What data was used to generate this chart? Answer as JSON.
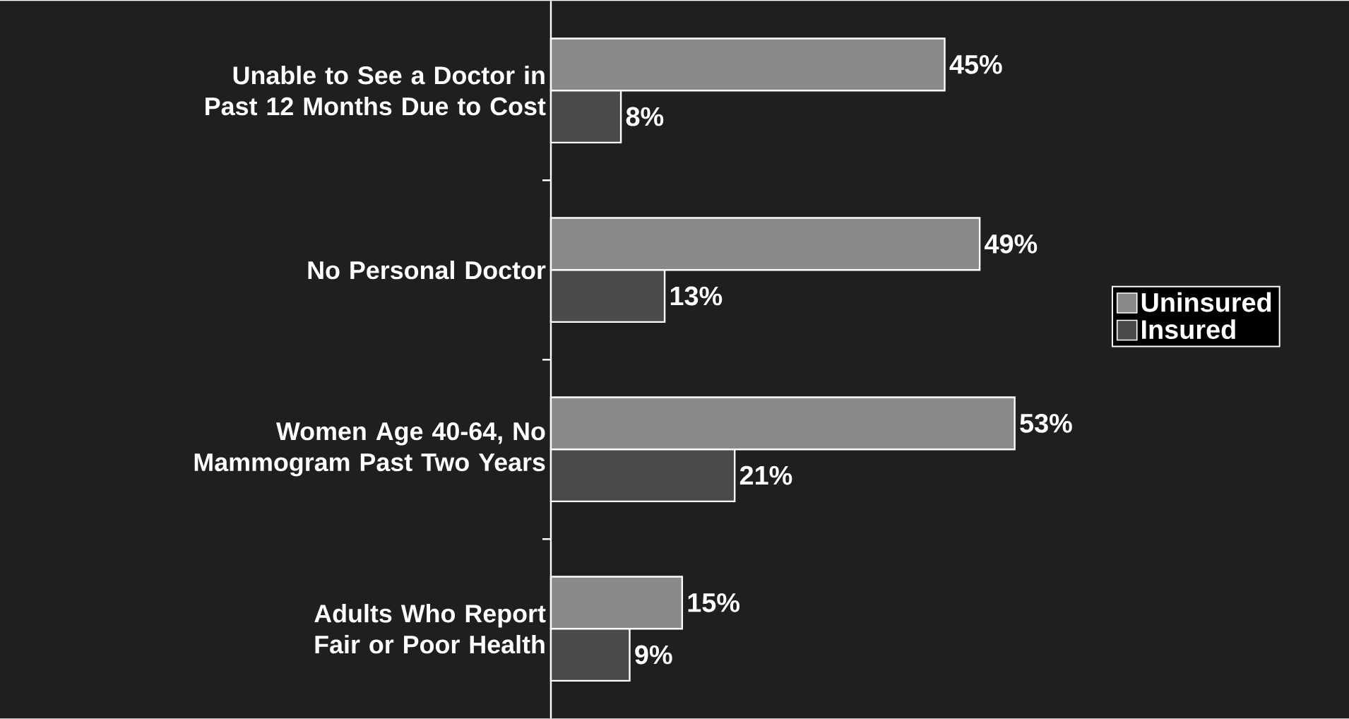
{
  "chart_data": {
    "type": "bar",
    "orientation": "horizontal",
    "categories": [
      "Unable to See a Doctor in Past 12 Months Due to Cost",
      "No Personal Doctor",
      "Women Age 40-64, No Mammogram Past Two Years",
      "Adults Who Report Fair or Poor Health"
    ],
    "series": [
      {
        "name": "Uninsured",
        "color": "#8a8a8a",
        "values": [
          45,
          49,
          53,
          15
        ],
        "value_labels": [
          "45%",
          "49%",
          "53%",
          "15%"
        ]
      },
      {
        "name": "Insured",
        "color": "#4a4a4a",
        "values": [
          8,
          13,
          21,
          9
        ],
        "value_labels": [
          "8%",
          "13%",
          "21%",
          "9%"
        ]
      }
    ],
    "tick_labels": "y",
    "legend": "right"
  }
}
